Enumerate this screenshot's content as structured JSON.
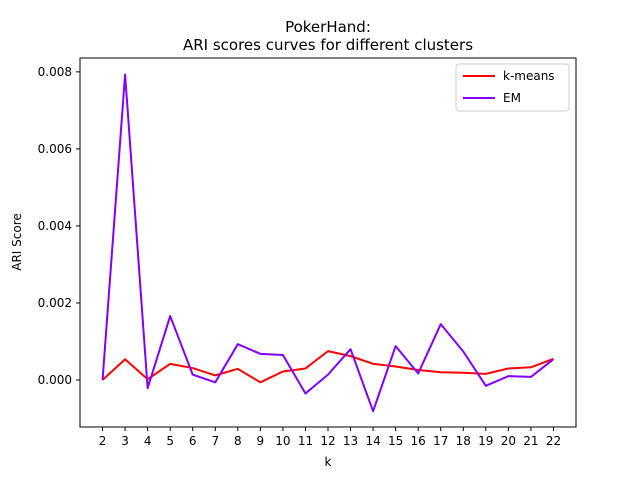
{
  "chart_data": {
    "type": "line",
    "title_lines": [
      "PokerHand:",
      "ARI scores curves for different clusters"
    ],
    "xlabel": "k",
    "ylabel": "ARI Score",
    "x": [
      2,
      3,
      4,
      5,
      6,
      7,
      8,
      9,
      10,
      11,
      12,
      13,
      14,
      15,
      16,
      17,
      18,
      19,
      20,
      21,
      22
    ],
    "xticks": [
      "2",
      "3",
      "4",
      "5",
      "6",
      "7",
      "8",
      "9",
      "10",
      "11",
      "12",
      "13",
      "14",
      "15",
      "16",
      "17",
      "18",
      "19",
      "20",
      "21",
      "22"
    ],
    "yticks": [
      {
        "value": 0.0,
        "label": "0.000"
      },
      {
        "value": 0.002,
        "label": "0.002"
      },
      {
        "value": 0.004,
        "label": "0.004"
      },
      {
        "value": 0.006,
        "label": "0.006"
      },
      {
        "value": 0.008,
        "label": "0.008"
      }
    ],
    "xlim": [
      1.0,
      23.0
    ],
    "ylim": [
      -0.00122,
      0.00836
    ],
    "grid": false,
    "legend_position": "upper right",
    "series": [
      {
        "name": "k-means",
        "color": "#ff0000",
        "values": [
          0.0,
          0.00054,
          2e-05,
          0.00042,
          0.00031,
          0.00012,
          0.00029,
          -6e-05,
          0.00022,
          0.0003,
          0.00075,
          0.00062,
          0.00042,
          0.00035,
          0.00026,
          0.0002,
          0.00019,
          0.00016,
          0.0003,
          0.00033,
          0.00055
        ]
      },
      {
        "name": "EM",
        "color": "#8000ff",
        "values": [
          0.0,
          0.00793,
          -0.00021,
          0.00166,
          0.00014,
          -6e-05,
          0.00093,
          0.00068,
          0.00065,
          -0.00035,
          0.00014,
          0.0008,
          -0.00081,
          0.00088,
          0.00017,
          0.00145,
          0.00074,
          -0.00015,
          0.0001,
          8e-05,
          0.00054
        ]
      }
    ]
  }
}
